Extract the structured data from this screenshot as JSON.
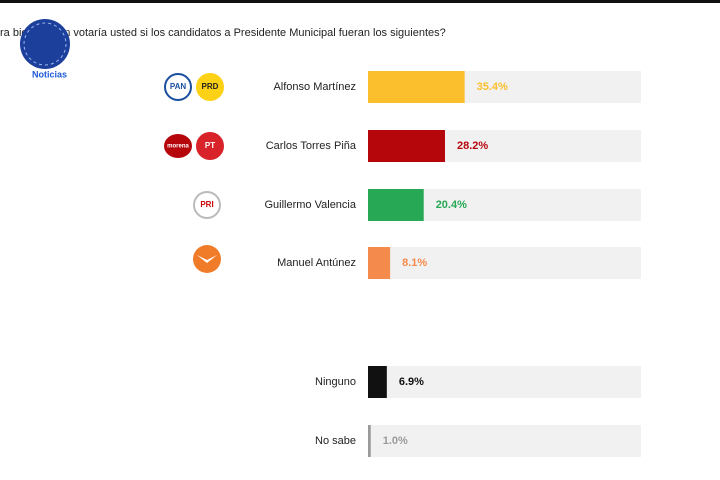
{
  "brand": "Noticias",
  "chart_data": {
    "type": "bar",
    "orientation": "horizontal",
    "title": "ra bien ¿quién votaría usted si los candidatos a Presidente Municipal fueran los siguientes?",
    "categories": [
      "Alfonso Martínez",
      "Carlos Torres Piña",
      "Guillermo Valencia",
      "Manuel Antúnez",
      "Ninguno",
      "No sabe"
    ],
    "values": [
      35.4,
      28.2,
      20.4,
      8.1,
      6.9,
      1.0
    ],
    "value_labels": [
      "35.4%",
      "28.2%",
      "20.4%",
      "8.1%",
      "6.9%",
      "1.0%"
    ],
    "colors": [
      "#fbbf2d",
      "#b5060c",
      "#26a854",
      "#f48a4b",
      "#111111",
      "#9a9a9a"
    ],
    "xlim": [
      0,
      100
    ],
    "logos": [
      [
        "PAN",
        "PRD"
      ],
      [
        "morena",
        "PT"
      ],
      [
        "PRI"
      ],
      [],
      [],
      []
    ]
  }
}
